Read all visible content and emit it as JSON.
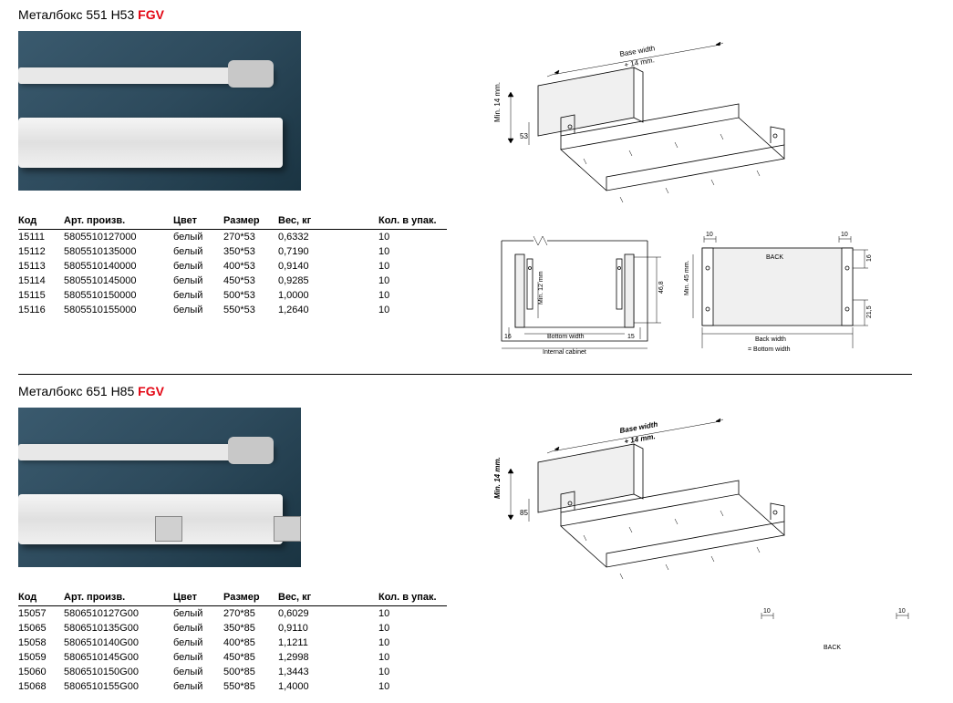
{
  "products": [
    {
      "title_name": "Металбокс 551 H53",
      "title_brand": "FGV",
      "has_brackets": false,
      "iso_bold": false,
      "columns": [
        "Код",
        "Арт. произв.",
        "Цвет",
        "Размер",
        "Вес, кг",
        "Кол. в упак."
      ],
      "rows": [
        [
          "15111",
          "5805510127000",
          "белый",
          "270*53",
          "0,6332",
          "10"
        ],
        [
          "15112",
          "5805510135000",
          "белый",
          "350*53",
          "0,7190",
          "10"
        ],
        [
          "15113",
          "5805510140000",
          "белый",
          "400*53",
          "0,9140",
          "10"
        ],
        [
          "15114",
          "5805510145000",
          "белый",
          "450*53",
          "0,9285",
          "10"
        ],
        [
          "15115",
          "5805510150000",
          "белый",
          "500*53",
          "1,0000",
          "10"
        ],
        [
          "15116",
          "5805510155000",
          "белый",
          "550*53",
          "1,2640",
          "10"
        ]
      ],
      "iso": {
        "top": "Base width",
        "top2": "+ 14 mm.",
        "side": "Min. 14 mm.",
        "h": "53"
      },
      "detail_a": {
        "t1": "Min. 12 mm",
        "t2": "46,8",
        "t3": "16",
        "t4": "Bottom width",
        "t5": "15",
        "t6": "Internal cabinet"
      },
      "detail_b": {
        "t1": "10",
        "t2": "10",
        "t3": "BACK",
        "t4": "Min. 45 mm.",
        "t5": "16",
        "t6": "21,5",
        "t7": "Back width",
        "t8": "= Bottom width"
      },
      "show_details": true
    },
    {
      "title_name": "Металбокс 651 H85",
      "title_brand": "FGV",
      "has_brackets": true,
      "iso_bold": true,
      "columns": [
        "Код",
        "Арт. произв.",
        "Цвет",
        "Размер",
        "Вес, кг",
        "Кол. в упак."
      ],
      "rows": [
        [
          "15057",
          "5806510127G00",
          "белый",
          "270*85",
          "0,6029",
          "10"
        ],
        [
          "15065",
          "5806510135G00",
          "белый",
          "350*85",
          "0,9110",
          "10"
        ],
        [
          "15058",
          "5806510140G00",
          "белый",
          "400*85",
          "1,1211",
          "10"
        ],
        [
          "15059",
          "5806510145G00",
          "белый",
          "450*85",
          "1,2998",
          "10"
        ],
        [
          "15060",
          "5806510150G00",
          "белый",
          "500*85",
          "1,3443",
          "10"
        ],
        [
          "15068",
          "5806510155G00",
          "белый",
          "550*85",
          "1,4000",
          "10"
        ]
      ],
      "iso": {
        "top": "Base width",
        "top2": "+ 14 mm.",
        "side": "Min. 14 mm.",
        "h": "85"
      },
      "detail_b": {
        "t1": "10",
        "t2": "10",
        "t3": "BACK"
      },
      "show_details": false
    }
  ]
}
